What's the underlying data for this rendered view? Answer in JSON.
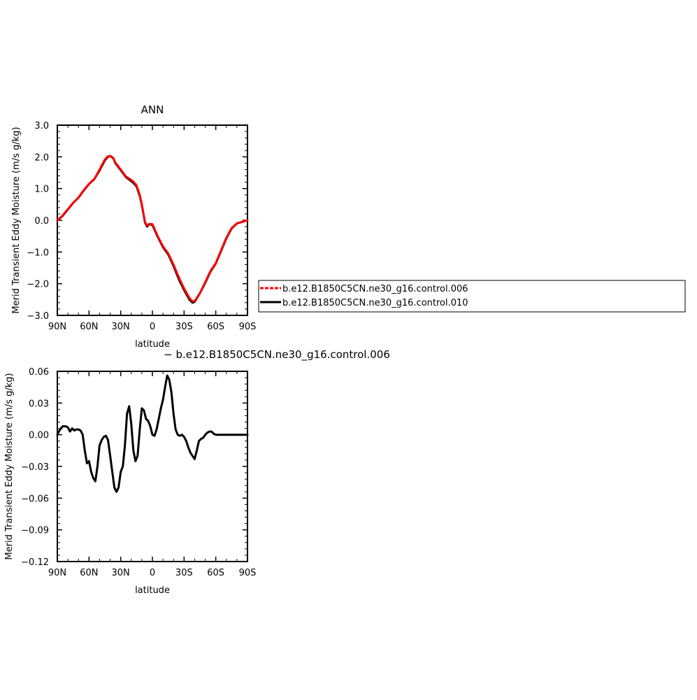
{
  "chart_data": [
    {
      "type": "line",
      "title": "ANN",
      "xlabel": "latitude",
      "ylabel": "Merid Transient Eddy Moisture (m/s g/kg)",
      "xlim": [
        90,
        -90
      ],
      "ylim": [
        -3.0,
        3.0
      ],
      "x_ticks": [
        {
          "value": 90,
          "label": "90N"
        },
        {
          "value": 60,
          "label": "60N"
        },
        {
          "value": 30,
          "label": "30N"
        },
        {
          "value": 0,
          "label": "0"
        },
        {
          "value": -30,
          "label": "30S"
        },
        {
          "value": -60,
          "label": "60S"
        },
        {
          "value": -90,
          "label": "90S"
        }
      ],
      "y_ticks": [
        {
          "value": 3.0,
          "label": "3.0"
        },
        {
          "value": 2.0,
          "label": "2.0"
        },
        {
          "value": 1.0,
          "label": "1.0"
        },
        {
          "value": 0.0,
          "label": "0.0"
        },
        {
          "value": -1.0,
          "label": "−1.0"
        },
        {
          "value": -2.0,
          "label": "−2.0"
        },
        {
          "value": -3.0,
          "label": "−3.0"
        }
      ],
      "grid": false,
      "legend": {
        "placement": "right",
        "entries": [
          {
            "label": "b.e12.B1850C5CN.ne30_g16.control.006",
            "color": "#ff0000",
            "style": "dashed"
          },
          {
            "label": "b.e12.B1850C5CN.ne30_g16.control.010",
            "color": "#000000",
            "style": "solid"
          }
        ]
      },
      "x": [
        90,
        85,
        80,
        75,
        70,
        65,
        60,
        55,
        50,
        45,
        42,
        40,
        37,
        35,
        30,
        25,
        20,
        18,
        15,
        12,
        10,
        7,
        5,
        3,
        0,
        -5,
        -10,
        -15,
        -20,
        -25,
        -30,
        -35,
        -38,
        -40,
        -45,
        -50,
        -55,
        -60,
        -65,
        -70,
        -75,
        -80,
        -85,
        -90
      ],
      "series": [
        {
          "name": "b.e12.B1850C5CN.ne30_g16.control.006",
          "color": "#ff0000",
          "dash": true,
          "values": [
            0.0,
            0.15,
            0.35,
            0.55,
            0.72,
            0.95,
            1.15,
            1.3,
            1.6,
            1.92,
            2.02,
            2.03,
            1.95,
            1.82,
            1.6,
            1.38,
            1.27,
            1.22,
            1.1,
            0.8,
            0.5,
            -0.05,
            -0.17,
            -0.12,
            -0.12,
            -0.5,
            -0.82,
            -1.05,
            -1.4,
            -1.8,
            -2.15,
            -2.45,
            -2.56,
            -2.55,
            -2.3,
            -1.95,
            -1.6,
            -1.35,
            -0.95,
            -0.55,
            -0.25,
            -0.1,
            -0.05,
            0.0
          ]
        },
        {
          "name": "b.e12.B1850C5CN.ne30_g16.control.010",
          "color": "#000000",
          "dash": false,
          "values": [
            0.0,
            0.14,
            0.34,
            0.55,
            0.71,
            0.94,
            1.14,
            1.3,
            1.57,
            1.89,
            2.0,
            2.03,
            1.96,
            1.8,
            1.58,
            1.36,
            1.23,
            1.18,
            1.07,
            0.77,
            0.48,
            -0.07,
            -0.2,
            -0.12,
            -0.15,
            -0.52,
            -0.85,
            -1.08,
            -1.44,
            -1.86,
            -2.2,
            -2.5,
            -2.6,
            -2.57,
            -2.3,
            -1.97,
            -1.62,
            -1.36,
            -0.97,
            -0.57,
            -0.26,
            -0.1,
            -0.05,
            0.0
          ]
        }
      ]
    },
    {
      "type": "line",
      "title": "− b.e12.B1850C5CN.ne30_g16.control.006",
      "xlabel": "latitude",
      "ylabel": "Merid Transient Eddy Moisture (m/s g/kg)",
      "xlim": [
        90,
        -90
      ],
      "ylim": [
        -0.12,
        0.06
      ],
      "x_ticks": [
        {
          "value": 90,
          "label": "90N"
        },
        {
          "value": 60,
          "label": "60N"
        },
        {
          "value": 30,
          "label": "30N"
        },
        {
          "value": 0,
          "label": "0"
        },
        {
          "value": -30,
          "label": "30S"
        },
        {
          "value": -60,
          "label": "60S"
        },
        {
          "value": -90,
          "label": "90S"
        }
      ],
      "y_ticks": [
        {
          "value": 0.06,
          "label": "0.06"
        },
        {
          "value": 0.03,
          "label": "0.03"
        },
        {
          "value": 0.0,
          "label": "0.00"
        },
        {
          "value": -0.03,
          "label": "−0.03"
        },
        {
          "value": -0.06,
          "label": "−0.06"
        },
        {
          "value": -0.09,
          "label": "−0.09"
        },
        {
          "value": -0.12,
          "label": "−0.12"
        }
      ],
      "grid": false,
      "series": [
        {
          "color": "#000000",
          "values_x": [
            90,
            88,
            85,
            82,
            80,
            78,
            76,
            74,
            72,
            70,
            68,
            66,
            64,
            62,
            60,
            58,
            56,
            54,
            52,
            50,
            48,
            46,
            44,
            42,
            40,
            38,
            36,
            34,
            32,
            30,
            28,
            26,
            24,
            22,
            20,
            18,
            16,
            14,
            12,
            10,
            8,
            6,
            4,
            2,
            0,
            -2,
            -4,
            -6,
            -8,
            -10,
            -12,
            -14,
            -16,
            -18,
            -20,
            -22,
            -24,
            -26,
            -28,
            -30,
            -32,
            -34,
            -36,
            -38,
            -40,
            -42,
            -44,
            -46,
            -48,
            -50,
            -52,
            -54,
            -56,
            -58,
            -60,
            -62,
            -64,
            -66,
            -68,
            -70,
            -72,
            -74,
            -76,
            -78,
            -80,
            -82,
            -84,
            -86,
            -88,
            -90
          ],
          "values": [
            0.0,
            0.004,
            0.008,
            0.008,
            0.007,
            0.003,
            0.006,
            0.004,
            0.005,
            0.005,
            0.004,
            0.0,
            -0.015,
            -0.027,
            -0.025,
            -0.035,
            -0.041,
            -0.044,
            -0.03,
            -0.01,
            -0.005,
            -0.002,
            -0.001,
            -0.005,
            -0.02,
            -0.035,
            -0.05,
            -0.054,
            -0.05,
            -0.035,
            -0.03,
            -0.01,
            0.02,
            0.027,
            0.01,
            -0.015,
            -0.025,
            -0.02,
            0.005,
            0.025,
            0.023,
            0.015,
            0.013,
            0.008,
            0.0,
            -0.001,
            0.005,
            0.015,
            0.025,
            0.033,
            0.045,
            0.056,
            0.052,
            0.04,
            0.02,
            0.005,
            0.0,
            -0.001,
            0.0,
            -0.002,
            -0.006,
            -0.012,
            -0.017,
            -0.02,
            -0.023,
            -0.015,
            -0.006,
            -0.004,
            -0.003,
            0.0,
            0.002,
            0.003,
            0.003,
            0.001,
            0.0,
            0.0,
            0.0,
            0.0,
            0.0,
            0.0,
            0.0,
            0.0,
            0.0,
            0.0,
            0.0,
            0.0,
            0.0,
            0.0,
            0.0,
            0.0
          ]
        }
      ]
    }
  ]
}
